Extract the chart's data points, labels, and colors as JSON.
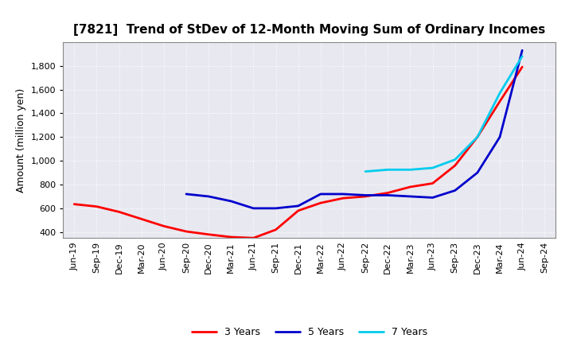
{
  "title": "[7821]  Trend of StDev of 12-Month Moving Sum of Ordinary Incomes",
  "ylabel": "Amount (million yen)",
  "background_color": "#ffffff",
  "plot_bg_color": "#e8e8f0",
  "grid_color": "#ffffff",
  "ylim": [
    350,
    2000
  ],
  "yticks": [
    400,
    600,
    800,
    1000,
    1200,
    1400,
    1600,
    1800
  ],
  "series": {
    "3 Years": {
      "color": "#ff0000",
      "data": [
        [
          "Jun-19",
          635
        ],
        [
          "Sep-19",
          615
        ],
        [
          "Dec-19",
          570
        ],
        [
          "Mar-20",
          510
        ],
        [
          "Jun-20",
          450
        ],
        [
          "Sep-20",
          405
        ],
        [
          "Dec-20",
          380
        ],
        [
          "Mar-21",
          358
        ],
        [
          "Jun-21",
          350
        ],
        [
          "Sep-21",
          420
        ],
        [
          "Dec-21",
          580
        ],
        [
          "Mar-22",
          645
        ],
        [
          "Jun-22",
          685
        ],
        [
          "Sep-22",
          700
        ],
        [
          "Dec-22",
          730
        ],
        [
          "Mar-23",
          780
        ],
        [
          "Jun-23",
          810
        ],
        [
          "Sep-23",
          960
        ],
        [
          "Dec-23",
          1200
        ],
        [
          "Mar-24",
          1500
        ],
        [
          "Jun-24",
          1790
        ],
        [
          "Sep-24",
          null
        ]
      ]
    },
    "5 Years": {
      "color": "#0000cc",
      "data": [
        [
          "Jun-19",
          null
        ],
        [
          "Sep-19",
          null
        ],
        [
          "Dec-19",
          null
        ],
        [
          "Mar-20",
          null
        ],
        [
          "Jun-20",
          null
        ],
        [
          "Sep-20",
          720
        ],
        [
          "Dec-20",
          700
        ],
        [
          "Mar-21",
          660
        ],
        [
          "Jun-21",
          600
        ],
        [
          "Sep-21",
          600
        ],
        [
          "Dec-21",
          620
        ],
        [
          "Mar-22",
          720
        ],
        [
          "Jun-22",
          720
        ],
        [
          "Sep-22",
          710
        ],
        [
          "Dec-22",
          710
        ],
        [
          "Mar-23",
          700
        ],
        [
          "Jun-23",
          690
        ],
        [
          "Sep-23",
          750
        ],
        [
          "Dec-23",
          900
        ],
        [
          "Mar-24",
          1200
        ],
        [
          "Jun-24",
          1930
        ],
        [
          "Sep-24",
          null
        ]
      ]
    },
    "7 Years": {
      "color": "#00ccee",
      "data": [
        [
          "Jun-19",
          null
        ],
        [
          "Sep-19",
          null
        ],
        [
          "Dec-19",
          null
        ],
        [
          "Mar-20",
          null
        ],
        [
          "Jun-20",
          null
        ],
        [
          "Sep-20",
          null
        ],
        [
          "Dec-20",
          null
        ],
        [
          "Mar-21",
          null
        ],
        [
          "Jun-21",
          null
        ],
        [
          "Sep-21",
          null
        ],
        [
          "Dec-21",
          null
        ],
        [
          "Mar-22",
          null
        ],
        [
          "Jun-22",
          null
        ],
        [
          "Sep-22",
          910
        ],
        [
          "Dec-22",
          925
        ],
        [
          "Mar-23",
          925
        ],
        [
          "Jun-23",
          940
        ],
        [
          "Sep-23",
          1010
        ],
        [
          "Dec-23",
          1200
        ],
        [
          "Mar-24",
          1570
        ],
        [
          "Jun-24",
          1880
        ],
        [
          "Sep-24",
          null
        ]
      ]
    },
    "10 Years": {
      "color": "#008800",
      "data": [
        [
          "Jun-19",
          null
        ],
        [
          "Sep-19",
          null
        ],
        [
          "Dec-19",
          null
        ],
        [
          "Mar-20",
          null
        ],
        [
          "Jun-20",
          null
        ],
        [
          "Sep-20",
          null
        ],
        [
          "Dec-20",
          null
        ],
        [
          "Mar-21",
          null
        ],
        [
          "Jun-21",
          null
        ],
        [
          "Sep-21",
          null
        ],
        [
          "Dec-21",
          null
        ],
        [
          "Mar-22",
          null
        ],
        [
          "Jun-22",
          null
        ],
        [
          "Sep-22",
          null
        ],
        [
          "Dec-22",
          null
        ],
        [
          "Mar-23",
          null
        ],
        [
          "Jun-23",
          null
        ],
        [
          "Sep-23",
          null
        ],
        [
          "Dec-23",
          null
        ],
        [
          "Mar-24",
          null
        ],
        [
          "Jun-24",
          null
        ],
        [
          "Sep-24",
          null
        ]
      ]
    }
  },
  "xtick_labels": [
    "Jun-19",
    "Sep-19",
    "Dec-19",
    "Mar-20",
    "Jun-20",
    "Sep-20",
    "Dec-20",
    "Mar-21",
    "Jun-21",
    "Sep-21",
    "Dec-21",
    "Mar-22",
    "Jun-22",
    "Sep-22",
    "Dec-22",
    "Mar-23",
    "Jun-23",
    "Sep-23",
    "Dec-23",
    "Mar-24",
    "Jun-24",
    "Sep-24"
  ],
  "title_fontsize": 11,
  "axis_fontsize": 8,
  "ylabel_fontsize": 9
}
